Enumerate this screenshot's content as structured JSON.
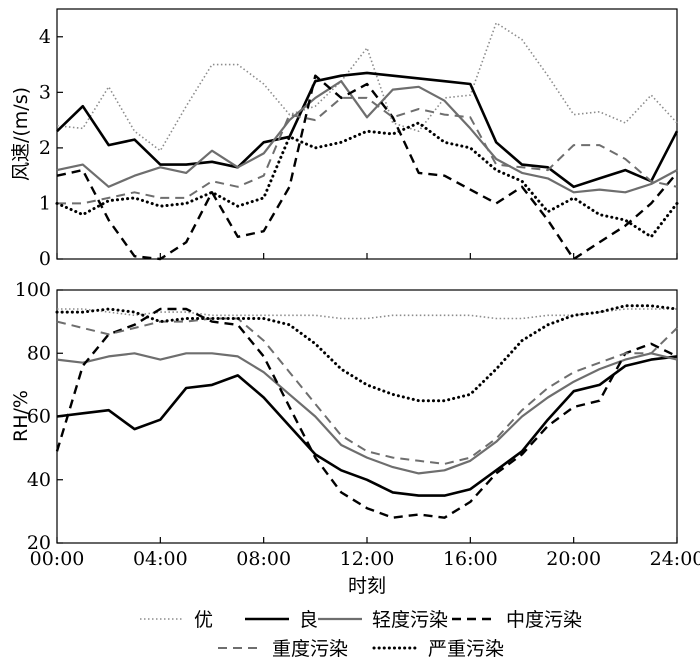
{
  "chart_data": [
    {
      "type": "line",
      "ylabel": "风速/(m/s)",
      "ylim": [
        0,
        4.5
      ],
      "yticks": [
        0,
        1,
        2,
        3,
        4
      ],
      "xlim": [
        0,
        24
      ],
      "series": [
        {
          "name": "优",
          "style": "dotted-thin",
          "color": "#8c8c8c",
          "x": [
            0,
            1,
            2,
            3,
            4,
            5,
            6,
            7,
            8,
            9,
            10,
            11,
            12,
            13,
            14,
            15,
            16,
            17,
            18,
            19,
            20,
            21,
            22,
            23,
            24
          ],
          "y": [
            2.4,
            2.35,
            3.1,
            2.3,
            1.95,
            2.75,
            3.5,
            3.5,
            3.15,
            2.6,
            2.75,
            3.2,
            3.8,
            2.45,
            2.3,
            2.9,
            2.95,
            4.25,
            3.95,
            3.3,
            2.6,
            2.65,
            2.45,
            2.95,
            2.45
          ]
        },
        {
          "name": "良",
          "style": "solid-thick",
          "color": "#000000",
          "x": [
            0,
            1,
            2,
            3,
            4,
            5,
            6,
            7,
            8,
            9,
            10,
            11,
            12,
            13,
            14,
            15,
            16,
            17,
            18,
            19,
            20,
            21,
            22,
            23,
            24
          ],
          "y": [
            2.3,
            2.75,
            2.05,
            2.15,
            1.7,
            1.7,
            1.75,
            1.65,
            2.1,
            2.2,
            3.2,
            3.3,
            3.35,
            3.3,
            3.25,
            3.2,
            3.15,
            2.1,
            1.7,
            1.65,
            1.3,
            1.45,
            1.6,
            1.4,
            2.3
          ]
        },
        {
          "name": "轻度污染",
          "style": "solid-gray",
          "color": "#6e6e6e",
          "x": [
            0,
            1,
            2,
            3,
            4,
            5,
            6,
            7,
            8,
            9,
            10,
            11,
            12,
            13,
            14,
            15,
            16,
            17,
            18,
            19,
            20,
            21,
            22,
            23,
            24
          ],
          "y": [
            1.6,
            1.7,
            1.3,
            1.5,
            1.65,
            1.55,
            1.95,
            1.65,
            1.9,
            2.5,
            2.9,
            3.2,
            2.55,
            3.05,
            3.1,
            2.85,
            2.35,
            1.8,
            1.55,
            1.45,
            1.2,
            1.25,
            1.2,
            1.35,
            1.6
          ]
        },
        {
          "name": "中度污染",
          "style": "dashed-thick",
          "color": "#000000",
          "x": [
            0,
            1,
            2,
            3,
            4,
            5,
            6,
            7,
            8,
            9,
            10,
            11,
            12,
            13,
            14,
            15,
            16,
            17,
            18,
            19,
            20,
            21,
            22,
            23,
            24
          ],
          "y": [
            1.5,
            1.6,
            0.7,
            0.05,
            0.0,
            0.3,
            1.2,
            0.4,
            0.5,
            1.3,
            3.3,
            2.9,
            3.15,
            2.55,
            1.55,
            1.5,
            1.25,
            1.0,
            1.3,
            0.7,
            0.0,
            0.3,
            0.6,
            1.0,
            1.55
          ]
        },
        {
          "name": "重度污染",
          "style": "dashed-gray",
          "color": "#6e6e6e",
          "x": [
            0,
            1,
            2,
            3,
            4,
            5,
            6,
            7,
            8,
            9,
            10,
            11,
            12,
            13,
            14,
            15,
            16,
            17,
            18,
            19,
            20,
            21,
            22,
            23,
            24
          ],
          "y": [
            1.0,
            1.0,
            1.1,
            1.2,
            1.1,
            1.1,
            1.4,
            1.3,
            1.5,
            2.6,
            2.5,
            2.9,
            2.9,
            2.55,
            2.7,
            2.6,
            2.55,
            1.7,
            1.65,
            1.6,
            2.05,
            2.05,
            1.8,
            1.4,
            1.3
          ]
        },
        {
          "name": "严重污染",
          "style": "dotted-thick",
          "color": "#000000",
          "x": [
            0,
            1,
            2,
            3,
            4,
            5,
            6,
            7,
            8,
            9,
            10,
            11,
            12,
            13,
            14,
            15,
            16,
            17,
            18,
            19,
            20,
            21,
            22,
            23,
            24
          ],
          "y": [
            1.0,
            0.8,
            1.05,
            1.1,
            0.95,
            1.0,
            1.2,
            0.95,
            1.1,
            2.2,
            2.0,
            2.1,
            2.3,
            2.25,
            2.45,
            2.1,
            2.0,
            1.6,
            1.4,
            0.85,
            1.1,
            0.8,
            0.7,
            0.4,
            1.0
          ]
        }
      ]
    },
    {
      "type": "line",
      "xlabel": "时刻",
      "ylabel": "RH/%",
      "ylim": [
        20,
        100
      ],
      "yticks": [
        20,
        40,
        60,
        80,
        100
      ],
      "xlim": [
        0,
        24
      ],
      "xticks": [
        0,
        4,
        8,
        12,
        16,
        20,
        24
      ],
      "xticklabels": [
        "00:00",
        "04:00",
        "08:00",
        "12:00",
        "16:00",
        "20:00",
        "24:00"
      ],
      "series": [
        {
          "name": "优",
          "style": "dotted-thin",
          "color": "#8c8c8c",
          "x": [
            0,
            1,
            2,
            3,
            4,
            5,
            6,
            7,
            8,
            9,
            10,
            11,
            12,
            13,
            14,
            15,
            16,
            17,
            18,
            19,
            20,
            21,
            22,
            23,
            24
          ],
          "y": [
            94,
            94,
            93,
            92,
            93,
            93,
            92,
            92,
            92,
            92,
            92,
            91,
            91,
            92,
            92,
            92,
            92,
            91,
            91,
            92,
            92,
            93,
            94,
            94,
            94
          ]
        },
        {
          "name": "良",
          "style": "solid-thick",
          "color": "#000000",
          "x": [
            0,
            1,
            2,
            3,
            4,
            5,
            6,
            7,
            8,
            9,
            10,
            11,
            12,
            13,
            14,
            15,
            16,
            17,
            18,
            19,
            20,
            21,
            22,
            23,
            24
          ],
          "y": [
            60,
            61,
            62,
            56,
            59,
            69,
            70,
            73,
            66,
            57,
            48,
            43,
            40,
            36,
            35,
            35,
            37,
            43,
            49,
            59,
            68,
            70,
            76,
            78,
            79
          ]
        },
        {
          "name": "轻度污染",
          "style": "solid-gray",
          "color": "#6e6e6e",
          "x": [
            0,
            1,
            2,
            3,
            4,
            5,
            6,
            7,
            8,
            9,
            10,
            11,
            12,
            13,
            14,
            15,
            16,
            17,
            18,
            19,
            20,
            21,
            22,
            23,
            24
          ],
          "y": [
            78,
            77,
            79,
            80,
            78,
            80,
            80,
            79,
            74,
            67,
            60,
            51,
            47,
            44,
            42,
            43,
            46,
            52,
            60,
            66,
            71,
            75,
            78,
            80,
            78
          ]
        },
        {
          "name": "中度污染",
          "style": "dashed-thick",
          "color": "#000000",
          "x": [
            0,
            1,
            2,
            3,
            4,
            5,
            6,
            7,
            8,
            9,
            10,
            11,
            12,
            13,
            14,
            15,
            16,
            17,
            18,
            19,
            20,
            21,
            22,
            23,
            24
          ],
          "y": [
            49,
            76,
            86,
            89,
            94,
            94,
            90,
            89,
            79,
            63,
            47,
            36,
            31,
            28,
            29,
            28,
            33,
            42,
            48,
            57,
            63,
            65,
            80,
            83,
            79
          ]
        },
        {
          "name": "重度污染",
          "style": "dashed-gray",
          "color": "#6e6e6e",
          "x": [
            0,
            1,
            2,
            3,
            4,
            5,
            6,
            7,
            8,
            9,
            10,
            11,
            12,
            13,
            14,
            15,
            16,
            17,
            18,
            19,
            20,
            21,
            22,
            23,
            24
          ],
          "y": [
            90,
            88,
            86,
            88,
            90,
            90,
            91,
            91,
            84,
            74,
            64,
            54,
            49,
            47,
            46,
            45,
            47,
            53,
            62,
            69,
            74,
            77,
            80,
            80,
            88
          ]
        },
        {
          "name": "严重污染",
          "style": "dotted-thick",
          "color": "#000000",
          "x": [
            0,
            1,
            2,
            3,
            4,
            5,
            6,
            7,
            8,
            9,
            10,
            11,
            12,
            13,
            14,
            15,
            16,
            17,
            18,
            19,
            20,
            21,
            22,
            23,
            24
          ],
          "y": [
            93,
            93,
            94,
            93,
            90,
            91,
            91,
            91,
            91,
            89,
            83,
            75,
            70,
            67,
            65,
            65,
            67,
            75,
            84,
            89,
            92,
            93,
            95,
            95,
            94
          ]
        }
      ]
    }
  ],
  "legend": {
    "placement": "bottom",
    "row1": [
      "优",
      "良",
      "轻度污染",
      "中度污染"
    ],
    "row2": [
      "重度污染",
      "严重污染"
    ]
  }
}
